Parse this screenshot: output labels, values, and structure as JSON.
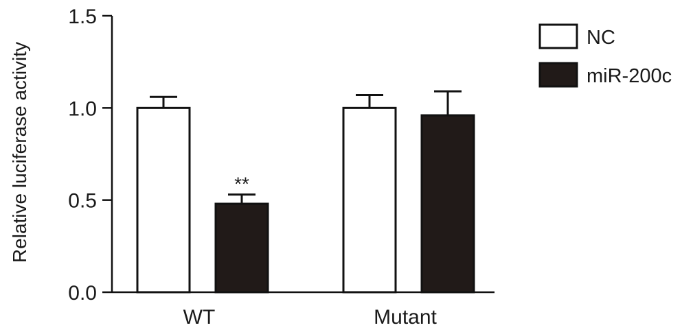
{
  "chart_data": {
    "type": "bar",
    "title": "",
    "xlabel": "",
    "ylabel": "Relative luciferase activity",
    "ylim": [
      0,
      1.5
    ],
    "yticks": [
      "0.0",
      "0.5",
      "1.0",
      "1.5"
    ],
    "ytick_values": [
      0,
      0.5,
      1.0,
      1.5
    ],
    "categories": [
      "WT",
      "Mutant"
    ],
    "series": [
      {
        "name": "NC",
        "values": [
          1.0,
          1.0
        ],
        "errors": [
          0.06,
          0.07
        ],
        "fill": "#ffffff",
        "stroke": "#111111"
      },
      {
        "name": "miR-200c",
        "values": [
          0.48,
          0.96
        ],
        "errors": [
          0.05,
          0.13
        ],
        "fill": "#211a18",
        "stroke": "#111111"
      }
    ],
    "annotations": [
      {
        "category": "WT",
        "series": "miR-200c",
        "text": "**"
      }
    ],
    "legend": "top-right",
    "grid": false
  }
}
